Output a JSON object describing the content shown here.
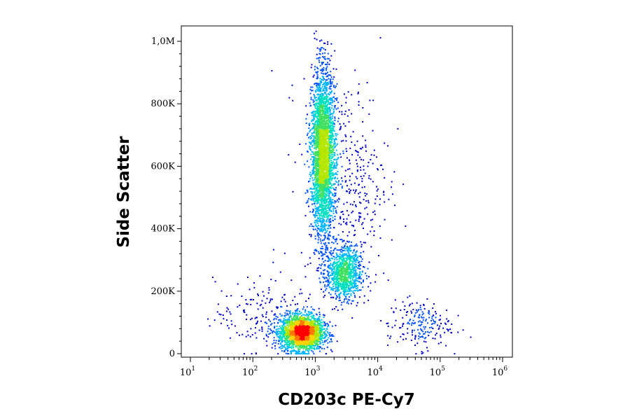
{
  "chart_data": {
    "type": "scatter",
    "title": "",
    "xlabel": "CD203c PE-Cy7",
    "ylabel": "Side Scatter",
    "x_scale": "log",
    "xlim": [
      10,
      1000000
    ],
    "ylim": [
      0,
      1050000
    ],
    "grid": false,
    "legend": "none",
    "x_ticks": [
      {
        "base": "10",
        "exp": "1"
      },
      {
        "base": "10",
        "exp": "2"
      },
      {
        "base": "10",
        "exp": "3"
      },
      {
        "base": "10",
        "exp": "4"
      },
      {
        "base": "10",
        "exp": "5"
      },
      {
        "base": "10",
        "exp": "6"
      }
    ],
    "y_ticks": [
      {
        "label": "0",
        "value": 0
      },
      {
        "label": "200K",
        "value": 200000
      },
      {
        "label": "400K",
        "value": 400000
      },
      {
        "label": "600K",
        "value": 600000
      },
      {
        "label": "800K",
        "value": 800000
      },
      {
        "label": "1,0M",
        "value": 1000000
      }
    ],
    "colormap": [
      "#0000c8",
      "#0050ff",
      "#00b4ff",
      "#00e0c0",
      "#40e060",
      "#b4e600",
      "#ffd200",
      "#ff7800",
      "#ff0000"
    ],
    "populations": [
      {
        "x_center": 600,
        "y_center": 70000,
        "x_spread_log": 0.17,
        "y_spread": 28000,
        "count": 2600
      },
      {
        "x_center": 1300,
        "y_center": 640000,
        "x_spread_log": 0.09,
        "y_spread": 130000,
        "count": 3200
      },
      {
        "x_center": 2800,
        "y_center": 260000,
        "x_spread_log": 0.14,
        "y_spread": 42000,
        "count": 1000
      },
      {
        "x_center": 3000,
        "y_center": 550000,
        "x_spread_log": 0.35,
        "y_spread": 170000,
        "count": 450
      },
      {
        "x_center": 45000,
        "y_center": 95000,
        "x_spread_log": 0.25,
        "y_spread": 40000,
        "count": 200
      },
      {
        "x_center": 150,
        "y_center": 120000,
        "x_spread_log": 0.4,
        "y_spread": 60000,
        "count": 200
      }
    ]
  }
}
